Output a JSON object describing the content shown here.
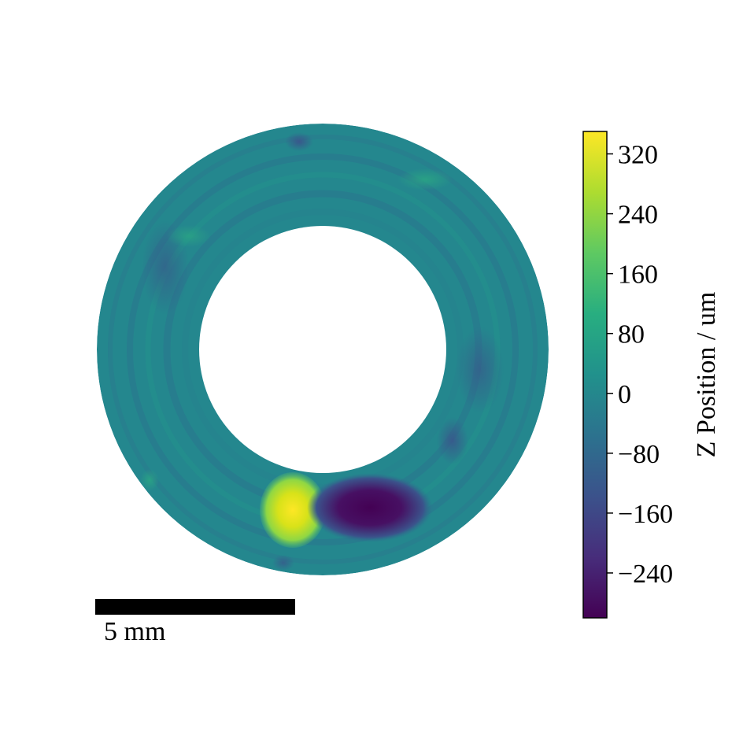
{
  "chart_data": {
    "type": "heatmap",
    "title": "",
    "colormap": "viridis",
    "colorbar": {
      "label": "Z Position / um",
      "range": [
        -300,
        350
      ],
      "ticks": [
        {
          "value": 320,
          "label": "320"
        },
        {
          "value": 240,
          "label": "240"
        },
        {
          "value": 160,
          "label": "160"
        },
        {
          "value": 80,
          "label": "80"
        },
        {
          "value": 0,
          "label": "0"
        },
        {
          "value": -80,
          "label": "−80"
        },
        {
          "value": -160,
          "label": "−160"
        },
        {
          "value": -240,
          "label": "−240"
        }
      ],
      "placement": "right"
    },
    "annulus": {
      "baseline_value": 5,
      "features": [
        {
          "value": 330,
          "description": "high region"
        },
        {
          "value": -280,
          "description": "low region"
        }
      ]
    },
    "scale_bar": {
      "label": "5 mm"
    }
  },
  "colors": {
    "viridis_stops": [
      "#440154",
      "#472d7b",
      "#3b528b",
      "#2c728e",
      "#21918c",
      "#28ae80",
      "#5ec962",
      "#addc30",
      "#fde725"
    ]
  }
}
